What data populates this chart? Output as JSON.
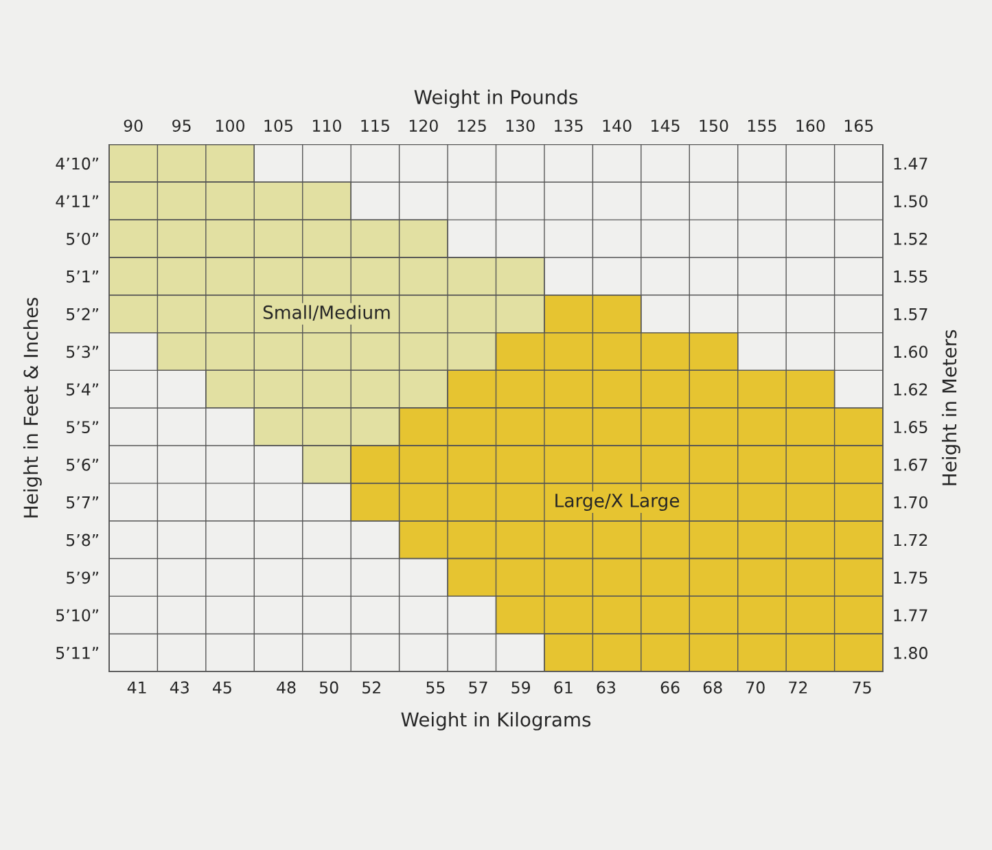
{
  "chart_data": {
    "type": "bar",
    "orientation": "horizontal",
    "x2label": "Weight in Pounds",
    "xlabel": "Weight in Kilograms",
    "ylabel": "Height in Feet & Inches",
    "y2label": "Height in Meters",
    "categories": [
      "4’10”",
      "4’11”",
      "5’0”",
      "5’1”",
      "5’2”",
      "5’3”",
      "5’4”",
      "5’5”",
      "5’6”",
      "5’7”",
      "5’8”",
      "5’9”",
      "5’10”",
      "5’11”"
    ],
    "y2_categories": [
      "1.47",
      "1.50",
      "1.52",
      "1.55",
      "1.57",
      "1.60",
      "1.62",
      "1.65",
      "1.67",
      "1.70",
      "1.72",
      "1.75",
      "1.77",
      "1.80"
    ],
    "x2lim": [
      87.5,
      167.5
    ],
    "x2ticks": [
      90,
      95,
      100,
      105,
      110,
      115,
      120,
      125,
      130,
      135,
      140,
      145,
      150,
      155,
      160,
      165
    ],
    "xlim": [
      39.69,
      75.98
    ],
    "xticks": [
      41,
      43,
      45,
      48,
      50,
      52,
      55,
      57,
      59,
      61,
      63,
      66,
      68,
      70,
      72,
      75
    ],
    "series": [
      {
        "name": "Small/Medium",
        "color": "#e2e0a2",
        "axis": "x2",
        "base": [
          87.5,
          87.5,
          87.5,
          87.5,
          87.5,
          92.5,
          97.5,
          102.5,
          107.5,
          null,
          null,
          null,
          null,
          null
        ],
        "values": [
          15,
          25,
          35,
          45,
          45,
          35,
          25,
          15,
          5,
          null,
          null,
          null,
          null,
          null
        ]
      },
      {
        "name": "Large/X Large",
        "color": "#e6c431",
        "axis": "x2",
        "base": [
          null,
          null,
          null,
          null,
          132.5,
          127.5,
          122.5,
          117.5,
          112.5,
          112.5,
          117.5,
          122.5,
          127.5,
          132.5
        ],
        "values": [
          null,
          null,
          null,
          null,
          10,
          25,
          40,
          50,
          55,
          55,
          50,
          45,
          40,
          35
        ]
      }
    ]
  }
}
